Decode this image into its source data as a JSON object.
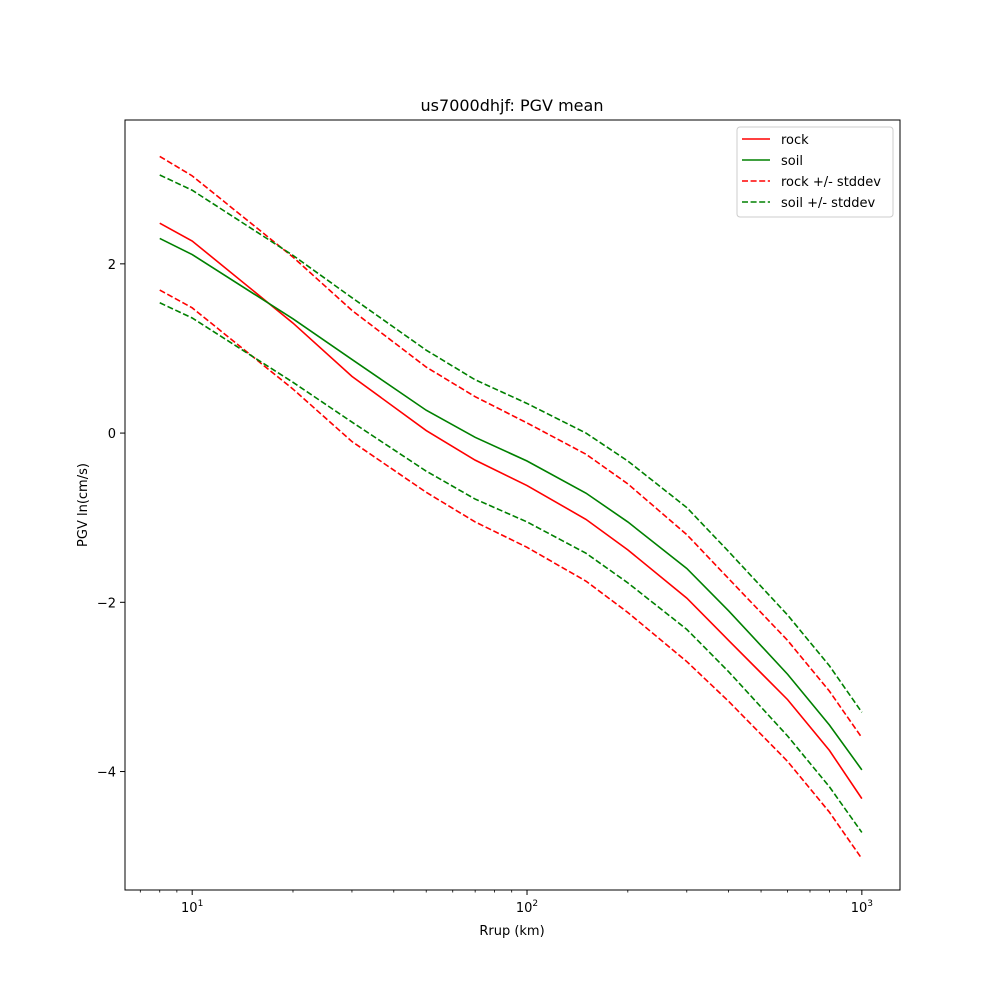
{
  "chart_data": {
    "type": "line",
    "title": "us7000dhjf: PGV mean",
    "xlabel": "Rrup (km)",
    "ylabel": "PGV ln(cm/s)",
    "xscale": "log",
    "xlim": [
      6.3,
      1300
    ],
    "ylim": [
      -5.4,
      3.7
    ],
    "grid": false,
    "legend_position": "top-right",
    "x_ticks": [
      {
        "value": 10,
        "base": "10",
        "exp": "1"
      },
      {
        "value": 100,
        "base": "10",
        "exp": "2"
      },
      {
        "value": 1000,
        "base": "10",
        "exp": "3"
      }
    ],
    "y_ticks": [
      {
        "value": 2,
        "label": "2"
      },
      {
        "value": 0,
        "label": "0"
      },
      {
        "value": -2,
        "label": "−2"
      },
      {
        "value": -4,
        "label": "−4"
      }
    ],
    "x": [
      8,
      10,
      20,
      30,
      50,
      70,
      100,
      150,
      200,
      300,
      400,
      600,
      800,
      1000
    ],
    "series": [
      {
        "name": "rock",
        "color": "#ff0000",
        "dash": "solid",
        "values": [
          2.48,
          2.27,
          1.3,
          0.67,
          0.03,
          -0.32,
          -0.62,
          -1.02,
          -1.38,
          -1.95,
          -2.45,
          -3.15,
          -3.75,
          -4.32
        ]
      },
      {
        "name": "soil",
        "color": "#008000",
        "dash": "solid",
        "values": [
          2.3,
          2.11,
          1.35,
          0.87,
          0.27,
          -0.05,
          -0.33,
          -0.71,
          -1.05,
          -1.6,
          -2.1,
          -2.85,
          -3.45,
          -3.98
        ]
      },
      {
        "name": "rock +/- stddev",
        "color": "#ff0000",
        "dash": "dashed",
        "show_in_legend": true,
        "values": [
          3.27,
          3.04,
          2.08,
          1.45,
          0.78,
          0.43,
          0.12,
          -0.25,
          -0.6,
          -1.2,
          -1.72,
          -2.45,
          -3.05,
          -3.6
        ]
      },
      {
        "name": "rock +/- stddev",
        "color": "#ff0000",
        "dash": "dashed",
        "show_in_legend": false,
        "values": [
          1.69,
          1.48,
          0.52,
          -0.1,
          -0.7,
          -1.05,
          -1.35,
          -1.75,
          -2.12,
          -2.7,
          -3.17,
          -3.88,
          -4.48,
          -5.03
        ]
      },
      {
        "name": "soil +/- stddev",
        "color": "#008000",
        "dash": "dashed",
        "show_in_legend": true,
        "values": [
          3.05,
          2.87,
          2.1,
          1.6,
          0.98,
          0.63,
          0.35,
          0.0,
          -0.33,
          -0.88,
          -1.4,
          -2.15,
          -2.75,
          -3.3
        ]
      },
      {
        "name": "soil +/- stddev",
        "color": "#008000",
        "dash": "dashed",
        "show_in_legend": false,
        "values": [
          1.54,
          1.36,
          0.6,
          0.13,
          -0.45,
          -0.78,
          -1.05,
          -1.42,
          -1.77,
          -2.32,
          -2.82,
          -3.58,
          -4.18,
          -4.72
        ]
      }
    ]
  }
}
